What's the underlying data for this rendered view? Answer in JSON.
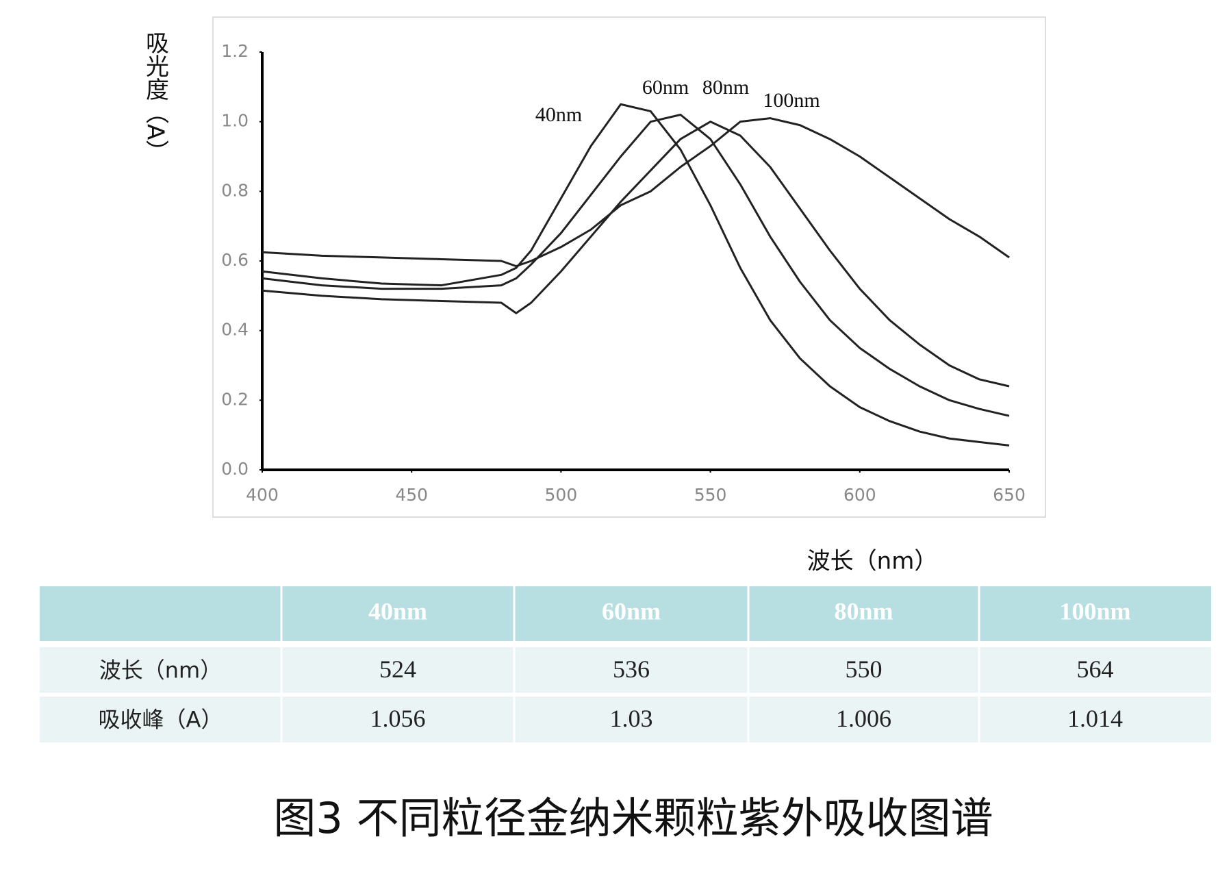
{
  "chart_data": {
    "type": "line",
    "y_label": "吸光度（A）",
    "x_label": "波长（nm）",
    "x": [
      400,
      420,
      440,
      460,
      480,
      485,
      490,
      500,
      510,
      520,
      530,
      540,
      550,
      560,
      570,
      580,
      590,
      600,
      610,
      620,
      630,
      640,
      650
    ],
    "series": [
      {
        "name": "40nm",
        "color": "#222222",
        "values": [
          0.57,
          0.55,
          0.535,
          0.53,
          0.56,
          0.58,
          0.63,
          0.78,
          0.93,
          1.05,
          1.03,
          0.92,
          0.76,
          0.58,
          0.43,
          0.32,
          0.24,
          0.18,
          0.14,
          0.11,
          0.09,
          0.08,
          0.07
        ]
      },
      {
        "name": "60nm",
        "color": "#222222",
        "values": [
          0.55,
          0.53,
          0.52,
          0.52,
          0.53,
          0.55,
          0.59,
          0.68,
          0.79,
          0.9,
          1.0,
          1.02,
          0.95,
          0.82,
          0.67,
          0.54,
          0.43,
          0.35,
          0.29,
          0.24,
          0.2,
          0.175,
          0.155
        ]
      },
      {
        "name": "80nm",
        "color": "#222222",
        "values": [
          0.515,
          0.5,
          0.49,
          0.485,
          0.48,
          0.45,
          0.48,
          0.57,
          0.67,
          0.77,
          0.86,
          0.95,
          1.0,
          0.96,
          0.87,
          0.75,
          0.63,
          0.52,
          0.43,
          0.36,
          0.3,
          0.26,
          0.24
        ]
      },
      {
        "name": "100nm",
        "color": "#222222",
        "values": [
          0.625,
          0.615,
          0.61,
          0.605,
          0.6,
          0.585,
          0.6,
          0.64,
          0.69,
          0.76,
          0.8,
          0.87,
          0.93,
          1.0,
          1.01,
          0.99,
          0.95,
          0.9,
          0.84,
          0.78,
          0.72,
          0.67,
          0.61
        ]
      }
    ],
    "xlim": [
      400,
      650
    ],
    "xticks": [
      400,
      450,
      500,
      550,
      600,
      650
    ],
    "ylim": [
      0,
      1.2
    ],
    "yticks": [
      {
        "value": 0,
        "label": "0.0"
      },
      0.2,
      0.4,
      0.6,
      0.8,
      {
        "value": 1,
        "label": "1.0"
      },
      1.2
    ],
    "grid": false
  },
  "table": {
    "header": [
      "40nm",
      "60nm",
      "80nm",
      "100nm"
    ],
    "rows": [
      [
        "波长（nm）",
        524,
        536,
        550,
        564
      ],
      [
        "吸收峰（A）",
        1.056,
        1.03,
        1.006,
        1.014
      ]
    ]
  },
  "caption": "图3 不同粒径金纳米颗粒紫外吸收图谱"
}
